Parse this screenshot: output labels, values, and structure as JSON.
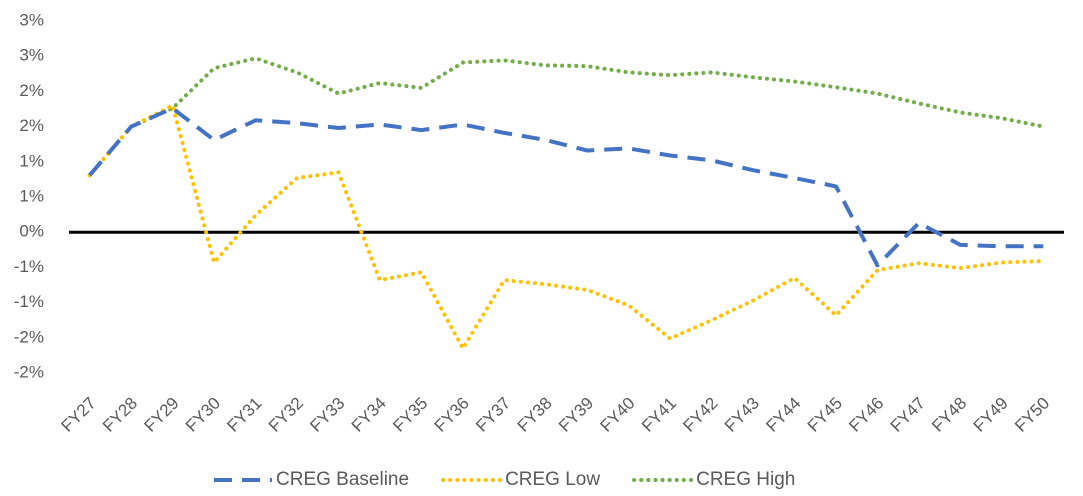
{
  "chart_data": {
    "type": "line",
    "categories": [
      "FY27",
      "FY28",
      "FY29",
      "FY30",
      "FY31",
      "FY32",
      "FY33",
      "FY34",
      "FY35",
      "FY36",
      "FY37",
      "FY38",
      "FY39",
      "FY40",
      "FY41",
      "FY42",
      "FY43",
      "FY44",
      "FY45",
      "FY46",
      "FY47",
      "FY48",
      "FY49",
      "FY50"
    ],
    "series": [
      {
        "name": "CREG Baseline",
        "color": "#4472c4",
        "style": "dashed",
        "values": [
          0.81,
          1.5,
          1.76,
          1.31,
          1.59,
          1.55,
          1.48,
          1.53,
          1.45,
          1.53,
          1.41,
          1.31,
          1.16,
          1.19,
          1.09,
          1.02,
          0.88,
          0.77,
          0.65,
          -0.47,
          0.13,
          -0.18,
          -0.2,
          -0.2
        ]
      },
      {
        "name": "CREG Low",
        "color": "#ffc000",
        "style": "dotted",
        "values": [
          0.81,
          1.5,
          1.8,
          -0.43,
          0.24,
          0.77,
          0.85,
          -0.68,
          -0.57,
          -1.65,
          -0.68,
          -0.74,
          -0.82,
          -1.04,
          -1.51,
          -1.25,
          -0.97,
          -0.65,
          -1.18,
          -0.54,
          -0.44,
          -0.51,
          -0.43,
          -0.41
        ]
      },
      {
        "name": "CREG High",
        "color": "#70ad47",
        "style": "dotted",
        "values": [
          0.81,
          1.5,
          1.76,
          2.33,
          2.47,
          2.27,
          1.97,
          2.12,
          2.05,
          2.41,
          2.44,
          2.37,
          2.36,
          2.27,
          2.23,
          2.27,
          2.2,
          2.14,
          2.06,
          1.97,
          1.83,
          1.7,
          1.62,
          1.5
        ]
      }
    ],
    "ylim": [
      -2,
      3
    ],
    "yticks": [
      {
        "value": -2,
        "label": "-2%"
      },
      {
        "value": -1.5,
        "label": "-2%"
      },
      {
        "value": -1,
        "label": "-1%"
      },
      {
        "value": -0.5,
        "label": "-1%"
      },
      {
        "value": 0,
        "label": "0%"
      },
      {
        "value": 0.5,
        "label": "1%"
      },
      {
        "value": 1,
        "label": "1%"
      },
      {
        "value": 1.5,
        "label": "2%"
      },
      {
        "value": 2,
        "label": "2%"
      },
      {
        "value": 2.5,
        "label": "3%"
      },
      {
        "value": 3,
        "label": "3%"
      }
    ],
    "legend": "bottom",
    "grid": false
  }
}
